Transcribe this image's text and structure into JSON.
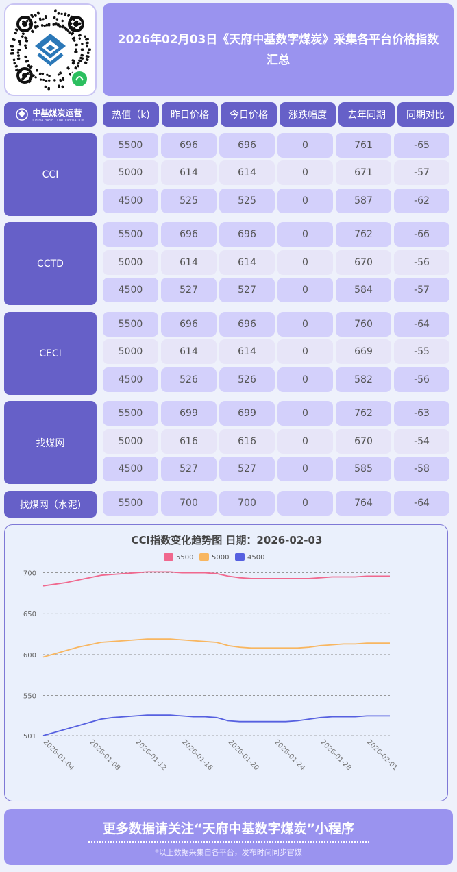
{
  "header": {
    "title": "2026年02月03日《天府中基数字煤炭》采集各平台价格指数汇总",
    "logo_text": "中基煤炭运营",
    "logo_subtext": "CHINA BASE COAL OPERATION"
  },
  "table": {
    "columns": [
      "热值（k)",
      "昨日价格",
      "今日价格",
      "涨跌幅度",
      "去年同期",
      "同期对比"
    ],
    "groups": [
      {
        "name": "CCI",
        "rows": [
          [
            "5500",
            "696",
            "696",
            "0",
            "761",
            "-65"
          ],
          [
            "5000",
            "614",
            "614",
            "0",
            "671",
            "-57"
          ],
          [
            "4500",
            "525",
            "525",
            "0",
            "587",
            "-62"
          ]
        ]
      },
      {
        "name": "CCTD",
        "rows": [
          [
            "5500",
            "696",
            "696",
            "0",
            "762",
            "-66"
          ],
          [
            "5000",
            "614",
            "614",
            "0",
            "670",
            "-56"
          ],
          [
            "4500",
            "527",
            "527",
            "0",
            "584",
            "-57"
          ]
        ]
      },
      {
        "name": "CECI",
        "rows": [
          [
            "5500",
            "696",
            "696",
            "0",
            "760",
            "-64"
          ],
          [
            "5000",
            "614",
            "614",
            "0",
            "669",
            "-55"
          ],
          [
            "4500",
            "526",
            "526",
            "0",
            "582",
            "-56"
          ]
        ]
      },
      {
        "name": "找煤网",
        "rows": [
          [
            "5500",
            "699",
            "699",
            "0",
            "762",
            "-63"
          ],
          [
            "5000",
            "616",
            "616",
            "0",
            "670",
            "-54"
          ],
          [
            "4500",
            "527",
            "527",
            "0",
            "585",
            "-58"
          ]
        ]
      },
      {
        "name": "找煤网（水泥)",
        "rows": [
          [
            "5500",
            "700",
            "700",
            "0",
            "764",
            "-64"
          ]
        ]
      }
    ]
  },
  "chart_data": {
    "type": "line",
    "title": "CCI指数变化趋势图 日期：2026-02-03",
    "legend_position": "top",
    "grid": true,
    "ylim": [
      501,
      703
    ],
    "yticks": [
      "700",
      "650",
      "600",
      "550",
      "501"
    ],
    "x_tick_labels": [
      "2026-01-04",
      "2026-01-08",
      "2026-01-12",
      "2026-01-16",
      "2026-01-20",
      "2026-01-24",
      "2026-01-28",
      "2026-02-01"
    ],
    "x": [
      "2026-01-04",
      "2026-01-05",
      "2026-01-06",
      "2026-01-07",
      "2026-01-08",
      "2026-01-09",
      "2026-01-10",
      "2026-01-11",
      "2026-01-12",
      "2026-01-13",
      "2026-01-14",
      "2026-01-15",
      "2026-01-16",
      "2026-01-17",
      "2026-01-18",
      "2026-01-19",
      "2026-01-20",
      "2026-01-21",
      "2026-01-22",
      "2026-01-23",
      "2026-01-24",
      "2026-01-25",
      "2026-01-26",
      "2026-01-27",
      "2026-01-28",
      "2026-01-29",
      "2026-01-30",
      "2026-01-31",
      "2026-02-01",
      "2026-02-02",
      "2026-02-03"
    ],
    "series": [
      {
        "name": "5500",
        "color": "#f0688e",
        "values": [
          684,
          686,
          688,
          691,
          694,
          697,
          698,
          699,
          700,
          701,
          701,
          701,
          700,
          700,
          700,
          699,
          696,
          694,
          693,
          693,
          693,
          693,
          693,
          693,
          694,
          695,
          695,
          695,
          696,
          696,
          696
        ]
      },
      {
        "name": "5000",
        "color": "#f8b660",
        "values": [
          597,
          601,
          605,
          609,
          612,
          615,
          616,
          617,
          618,
          619,
          619,
          619,
          618,
          617,
          616,
          615,
          611,
          609,
          608,
          608,
          608,
          608,
          608,
          609,
          611,
          612,
          613,
          613,
          614,
          614,
          614
        ]
      },
      {
        "name": "4500",
        "color": "#5660e0",
        "values": [
          501,
          505,
          509,
          513,
          517,
          521,
          523,
          524,
          525,
          526,
          526,
          526,
          525,
          524,
          524,
          523,
          519,
          518,
          518,
          518,
          518,
          518,
          519,
          521,
          523,
          524,
          524,
          524,
          525,
          525,
          525
        ]
      }
    ]
  },
  "footer": {
    "main": "更多数据请关注“天府中基数字煤炭”小程序",
    "note": "*以上数据采集自各平台，发布时间同步官媒"
  }
}
